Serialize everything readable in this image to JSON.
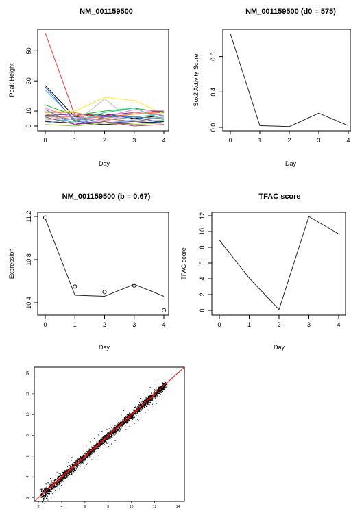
{
  "chart_data": [
    {
      "type": "line",
      "title": "NM_001159500",
      "xlabel": "Day",
      "ylabel": "Peak Height",
      "x": [
        0,
        1,
        2,
        3,
        4
      ],
      "xlim": [
        0,
        4
      ],
      "ylim": [
        0,
        62
      ],
      "xticks": [
        "0",
        "1",
        "2",
        "3",
        "4"
      ],
      "yticks": [
        {
          "value": 0,
          "label": "0"
        },
        {
          "value": 10,
          "label": "10"
        },
        {
          "value": 30,
          "label": "30"
        },
        {
          "value": 50,
          "label": "50"
        }
      ],
      "series": [
        {
          "color": "#ff3030",
          "values": [
            62,
            7,
            6,
            8,
            9
          ]
        },
        {
          "color": "#000000",
          "values": [
            27,
            6,
            8,
            5,
            7
          ]
        },
        {
          "color": "#22cccc",
          "values": [
            24,
            4,
            7,
            6,
            8
          ]
        },
        {
          "color": "#3a3aee",
          "values": [
            26,
            3,
            2,
            3,
            2
          ]
        },
        {
          "color": "#ffee22",
          "values": [
            10,
            10,
            19,
            17,
            8
          ]
        },
        {
          "color": "#bbbbbb",
          "values": [
            8,
            2,
            18,
            3,
            4
          ]
        },
        {
          "color": "#22bb22",
          "values": [
            14,
            7,
            10,
            12,
            9
          ]
        },
        {
          "color": "#ee66ee",
          "values": [
            12,
            5,
            6,
            11,
            10
          ]
        },
        {
          "color": "#ff9900",
          "values": [
            9,
            9,
            5,
            8,
            10
          ]
        },
        {
          "color": "#992299",
          "values": [
            7,
            8,
            7,
            9,
            10
          ]
        },
        {
          "color": "#2266ff",
          "values": [
            11,
            1,
            6,
            6,
            2
          ]
        },
        {
          "color": "#00dd99",
          "values": [
            5,
            3,
            9,
            12,
            4
          ]
        },
        {
          "color": "#888888",
          "values": [
            6,
            6,
            4,
            6,
            5
          ]
        },
        {
          "color": "#aa6622",
          "values": [
            8,
            4,
            5,
            3,
            6
          ]
        },
        {
          "color": "#ff88aa",
          "values": [
            4,
            7,
            3,
            9,
            7
          ]
        },
        {
          "color": "#222222",
          "values": [
            3,
            2,
            1,
            2,
            3
          ]
        },
        {
          "color": "#66aaff",
          "values": [
            2,
            5,
            2,
            4,
            6
          ]
        },
        {
          "color": "#99cc33",
          "values": [
            1,
            0,
            2,
            1,
            2
          ]
        },
        {
          "color": "#cc3366",
          "values": [
            6,
            1,
            3,
            0,
            1
          ]
        }
      ]
    },
    {
      "type": "line",
      "title": "NM_001159500 (d0 = 575)",
      "xlabel": "Day",
      "ylabel": "Sox2 Activity Score",
      "x": [
        0,
        1,
        2,
        3,
        4
      ],
      "xlim": [
        0,
        4
      ],
      "ylim": [
        0,
        1.06
      ],
      "xticks": [
        "0",
        "1",
        "2",
        "3",
        "4"
      ],
      "yticks": [
        {
          "value": 0.0,
          "label": "0.0"
        },
        {
          "value": 0.4,
          "label": "0.4"
        },
        {
          "value": 0.8,
          "label": "0.8"
        }
      ],
      "series": [
        {
          "color": "#222222",
          "values": [
            1.06,
            0.02,
            0.01,
            0.16,
            0.02
          ]
        }
      ]
    },
    {
      "type": "line",
      "title": "NM_001159500 (b = 0.67)",
      "xlabel": "Day",
      "ylabel": "Expression",
      "x": [
        0,
        1,
        2,
        3,
        4
      ],
      "xlim": [
        0,
        4
      ],
      "ylim": [
        10.33,
        11.2
      ],
      "xticks": [
        "0",
        "1",
        "2",
        "3",
        "4"
      ],
      "yticks": [
        {
          "value": 10.4,
          "label": "10.4"
        },
        {
          "value": 10.8,
          "label": "10.8"
        },
        {
          "value": 11.2,
          "label": "11.2"
        }
      ],
      "series": [
        {
          "color": "#222222",
          "values": [
            11.18,
            10.47,
            10.46,
            10.57,
            10.46
          ]
        },
        {
          "color": "#222222",
          "values": [
            11.19,
            10.55,
            10.5,
            10.56,
            10.33
          ],
          "marker": "circle"
        }
      ]
    },
    {
      "type": "line",
      "title": "TFAC score",
      "xlabel": "Day",
      "ylabel": "TFAC score",
      "x": [
        0,
        1,
        2,
        3,
        4
      ],
      "xlim": [
        0,
        4
      ],
      "ylim": [
        0,
        12
      ],
      "xticks": [
        "0",
        "1",
        "2",
        "3",
        "4"
      ],
      "yticks": [
        {
          "value": 0,
          "label": "0"
        },
        {
          "value": 2,
          "label": "2"
        },
        {
          "value": 4,
          "label": "4"
        },
        {
          "value": 6,
          "label": "6"
        },
        {
          "value": 8,
          "label": "8"
        },
        {
          "value": 10,
          "label": "10"
        },
        {
          "value": 12,
          "label": "12"
        }
      ],
      "series": [
        {
          "color": "#222222",
          "values": [
            8.9,
            4.1,
            0.1,
            11.9,
            9.7
          ]
        }
      ]
    },
    {
      "type": "scatter",
      "title": "",
      "xlabel": "",
      "ylabel": "",
      "xlim": [
        1.7,
        14.5
      ],
      "ylim": [
        1.7,
        14.5
      ],
      "xticks": [
        "2",
        "4",
        "6",
        "8",
        "10",
        "12",
        "14"
      ],
      "yticks": [
        "2",
        "4",
        "6",
        "8",
        "10",
        "12",
        "14"
      ],
      "point_color": "#000000",
      "dense_color": "#cc2222",
      "identity_line": {
        "from": [
          1.7,
          1.7
        ],
        "to": [
          14.5,
          14.5
        ],
        "color": "#ff0000"
      }
    }
  ]
}
